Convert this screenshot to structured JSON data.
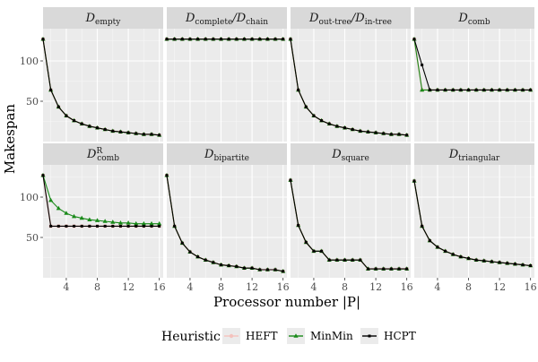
{
  "chart_data": {
    "type": "line",
    "xlabel": "Processor number |P|",
    "ylabel": "Makespan",
    "xlim": [
      1,
      16.5
    ],
    "ylim": [
      0,
      140
    ],
    "x_ticks": [
      "4",
      "8",
      "12",
      "16"
    ],
    "y_ticks": [
      "50",
      "100"
    ],
    "grid": true,
    "legend": {
      "title": "Heuristic",
      "position": "bottom",
      "entries": [
        {
          "label": "HEFT",
          "color": "#f4c2bd",
          "marker": "circle"
        },
        {
          "label": "MinMin",
          "color": "#1a8a1a",
          "marker": "triangle"
        },
        {
          "label": "HCPT",
          "color": "#000000",
          "marker": "square"
        }
      ]
    },
    "x": [
      1,
      2,
      3,
      4,
      5,
      6,
      7,
      8,
      9,
      10,
      11,
      12,
      13,
      14,
      15,
      16
    ],
    "panels": [
      {
        "title_main": "D",
        "title_sub": "empty",
        "title_sup": "",
        "series": [
          {
            "name": "HEFT",
            "values": [
              127,
              64,
              43,
              32,
              26,
              22,
              19,
              17,
              15,
              13,
              12,
              11,
              10,
              9,
              9,
              8
            ]
          },
          {
            "name": "MinMin",
            "values": [
              127,
              64,
              43,
              32,
              26,
              22,
              19,
              17,
              15,
              13,
              12,
              11,
              10,
              9,
              9,
              8
            ]
          },
          {
            "name": "HCPT",
            "values": [
              127,
              64,
              43,
              32,
              26,
              22,
              19,
              17,
              15,
              13,
              12,
              11,
              10,
              9,
              9,
              8
            ]
          }
        ]
      },
      {
        "title_main": "D",
        "title_sub": "complete",
        "title_main2": "/D",
        "title_sub2": "chain",
        "title_sup": "",
        "series": [
          {
            "name": "HEFT",
            "values": [
              127,
              127,
              127,
              127,
              127,
              127,
              127,
              127,
              127,
              127,
              127,
              127,
              127,
              127,
              127,
              127
            ]
          },
          {
            "name": "MinMin",
            "values": [
              127,
              127,
              127,
              127,
              127,
              127,
              127,
              127,
              127,
              127,
              127,
              127,
              127,
              127,
              127,
              127
            ]
          },
          {
            "name": "HCPT",
            "values": [
              127,
              127,
              127,
              127,
              127,
              127,
              127,
              127,
              127,
              127,
              127,
              127,
              127,
              127,
              127,
              127
            ]
          }
        ]
      },
      {
        "title_main": "D",
        "title_sub": "out-tree",
        "title_main2": "/D",
        "title_sub2": "in-tree",
        "title_sup": "",
        "series": [
          {
            "name": "HEFT",
            "values": [
              127,
              64,
              43,
              32,
              26,
              22,
              19,
              17,
              15,
              13,
              12,
              11,
              10,
              9,
              9,
              8
            ]
          },
          {
            "name": "MinMin",
            "values": [
              127,
              64,
              43,
              32,
              26,
              22,
              19,
              17,
              15,
              13,
              12,
              11,
              10,
              9,
              9,
              8
            ]
          },
          {
            "name": "HCPT",
            "values": [
              127,
              64,
              43,
              32,
              26,
              22,
              19,
              17,
              15,
              13,
              12,
              11,
              10,
              9,
              9,
              8
            ]
          }
        ]
      },
      {
        "title_main": "D",
        "title_sub": "comb",
        "title_sup": "",
        "series": [
          {
            "name": "HEFT",
            "values": [
              127,
              64,
              64,
              64,
              64,
              64,
              64,
              64,
              64,
              64,
              64,
              64,
              64,
              64,
              64,
              64
            ]
          },
          {
            "name": "MinMin",
            "values": [
              127,
              64,
              64,
              64,
              64,
              64,
              64,
              64,
              64,
              64,
              64,
              64,
              64,
              64,
              64,
              64
            ]
          },
          {
            "name": "HCPT",
            "values": [
              127,
              95,
              64,
              64,
              64,
              64,
              64,
              64,
              64,
              64,
              64,
              64,
              64,
              64,
              64,
              64
            ]
          }
        ]
      },
      {
        "title_main": "D",
        "title_sub": "comb",
        "title_sup": "R",
        "series": [
          {
            "name": "HEFT",
            "values": [
              127,
              64,
              64,
              64,
              64,
              64,
              64,
              64,
              64,
              64,
              64,
              64,
              64,
              64,
              64,
              64
            ]
          },
          {
            "name": "MinMin",
            "values": [
              127,
              96,
              86,
              80,
              76,
              74,
              72,
              71,
              70,
              69,
              68,
              68,
              67,
              67,
              67,
              67
            ]
          },
          {
            "name": "HCPT",
            "values": [
              127,
              64,
              64,
              64,
              64,
              64,
              64,
              64,
              64,
              64,
              64,
              64,
              64,
              64,
              64,
              64
            ]
          }
        ]
      },
      {
        "title_main": "D",
        "title_sub": "bipartite",
        "title_sup": "",
        "series": [
          {
            "name": "HEFT",
            "values": [
              127,
              64,
              43,
              32,
              26,
              22,
              19,
              16,
              15,
              14,
              12,
              12,
              10,
              10,
              10,
              8
            ]
          },
          {
            "name": "MinMin",
            "values": [
              127,
              64,
              43,
              32,
              26,
              22,
              19,
              16,
              15,
              14,
              12,
              12,
              10,
              10,
              10,
              8
            ]
          },
          {
            "name": "HCPT",
            "values": [
              127,
              64,
              43,
              32,
              26,
              22,
              19,
              16,
              15,
              14,
              12,
              12,
              10,
              10,
              10,
              8
            ]
          }
        ]
      },
      {
        "title_main": "D",
        "title_sub": "square",
        "title_sup": "",
        "series": [
          {
            "name": "HEFT",
            "values": [
              121,
              65,
              44,
              33,
              33,
              22,
              22,
              22,
              22,
              22,
              11,
              11,
              11,
              11,
              11,
              11
            ]
          },
          {
            "name": "MinMin",
            "values": [
              121,
              65,
              44,
              33,
              33,
              22,
              22,
              22,
              22,
              22,
              11,
              11,
              11,
              11,
              11,
              11
            ]
          },
          {
            "name": "HCPT",
            "values": [
              121,
              65,
              44,
              33,
              33,
              22,
              22,
              22,
              22,
              22,
              11,
              11,
              11,
              11,
              11,
              11
            ]
          }
        ]
      },
      {
        "title_main": "D",
        "title_sub": "triangular",
        "title_sup": "",
        "series": [
          {
            "name": "HEFT",
            "values": [
              120,
              64,
              46,
              38,
              33,
              29,
              26,
              24,
              22,
              21,
              20,
              19,
              18,
              17,
              16,
              15
            ]
          },
          {
            "name": "MinMin",
            "values": [
              120,
              64,
              46,
              38,
              33,
              29,
              26,
              24,
              22,
              21,
              20,
              19,
              18,
              17,
              16,
              15
            ]
          },
          {
            "name": "HCPT",
            "values": [
              120,
              64,
              46,
              38,
              33,
              29,
              26,
              24,
              22,
              21,
              20,
              19,
              18,
              17,
              16,
              15
            ]
          }
        ]
      }
    ]
  }
}
